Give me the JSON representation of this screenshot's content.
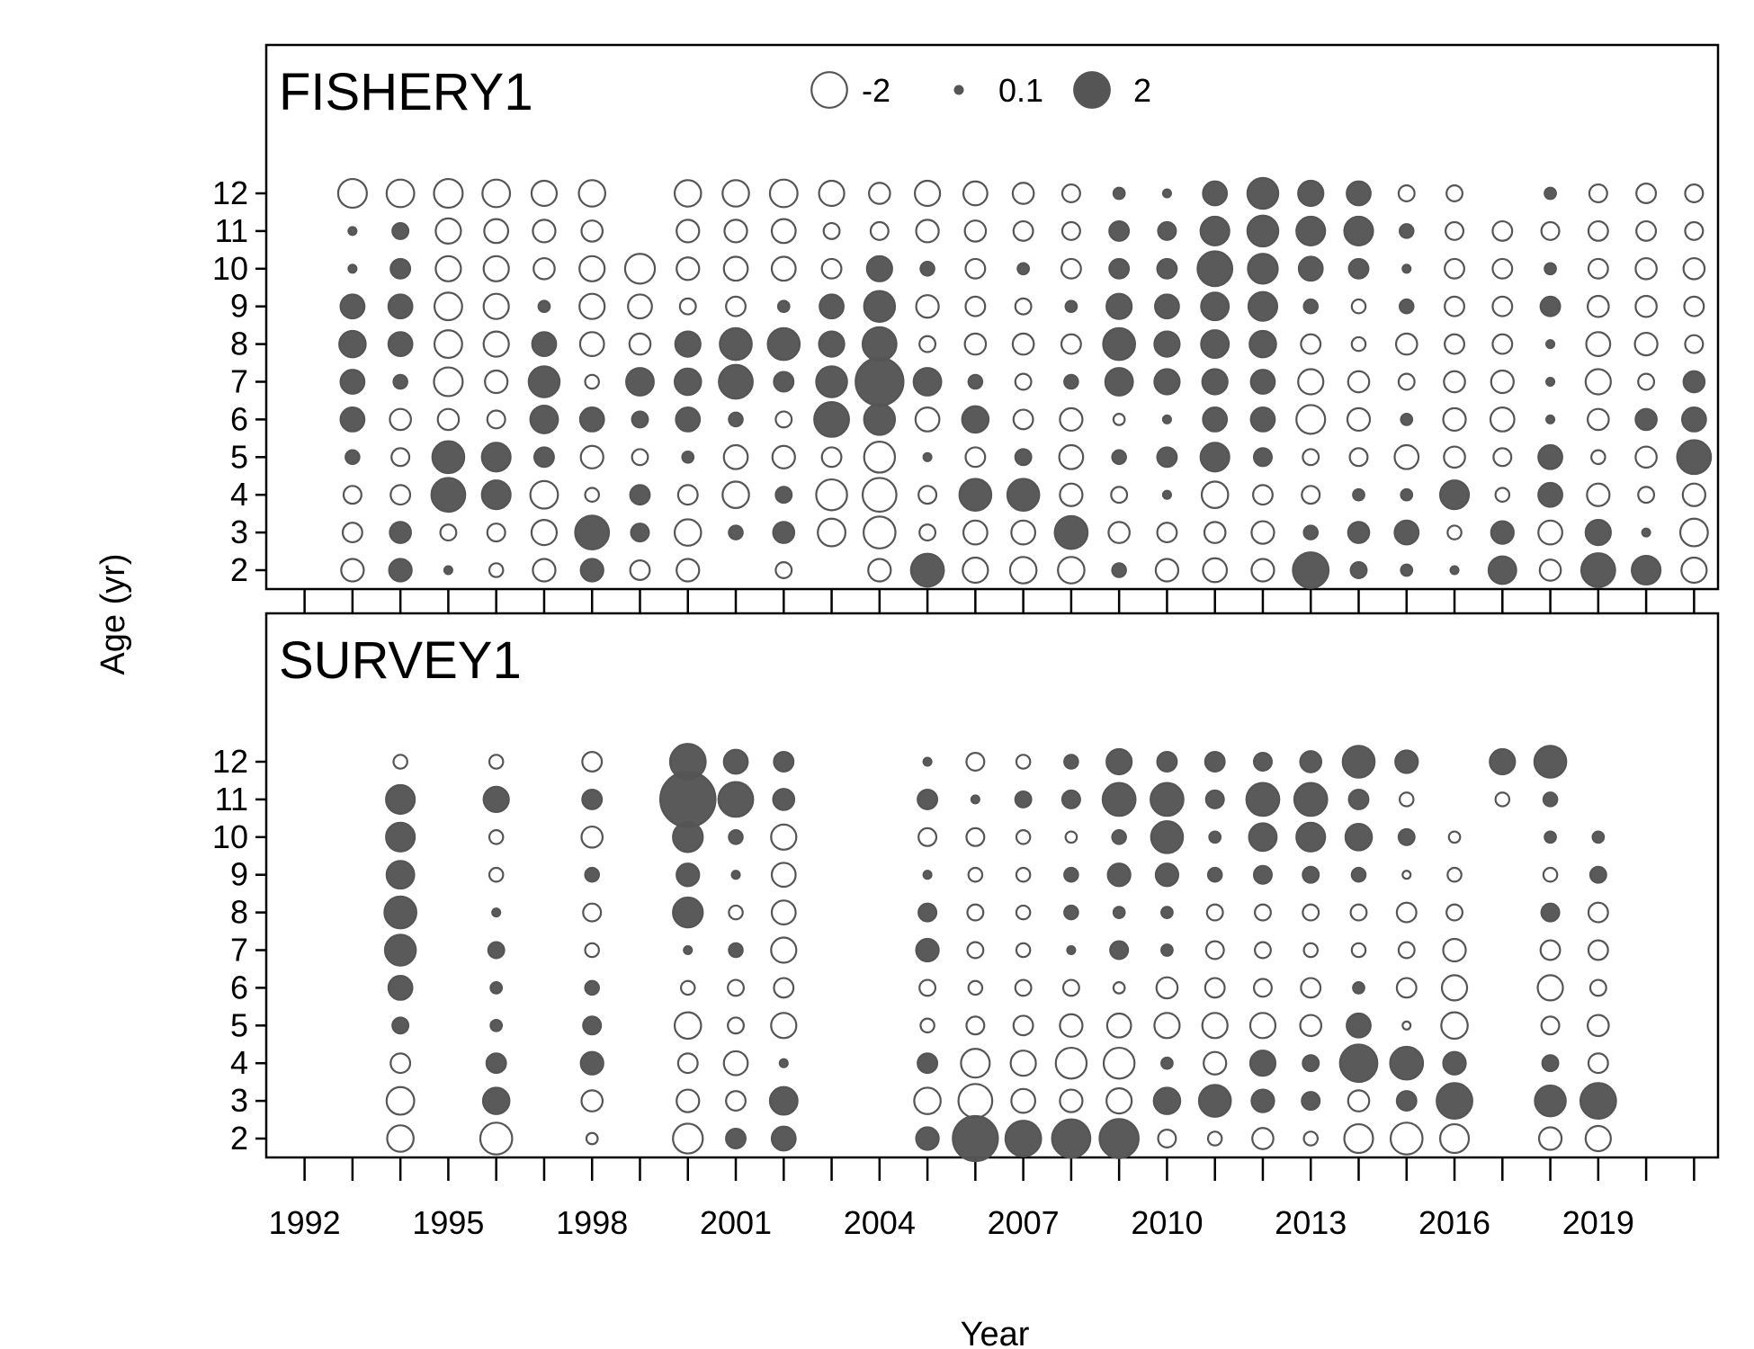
{
  "chart_data": {
    "type": "bubble",
    "xlabel": "Year",
    "ylabel": "Age (yr)",
    "x_ticks": [
      1992,
      1995,
      1998,
      2001,
      2004,
      2007,
      2010,
      2013,
      2016,
      2019
    ],
    "y_ticks": [
      2,
      3,
      4,
      5,
      6,
      7,
      8,
      9,
      10,
      11,
      12
    ],
    "xlim": [
      1991.2,
      2021.5
    ],
    "legend": {
      "placement": "top-center",
      "entries": [
        {
          "label": "-2",
          "value": -2
        },
        {
          "label": "0.1",
          "value": 0.1
        },
        {
          "label": "2",
          "value": 2
        }
      ]
    },
    "colors": {
      "positive": "#555555",
      "negative": "#ffffff",
      "stroke": "#555555"
    },
    "panels": [
      {
        "title": "FISHERY1",
        "ages": [
          12,
          11,
          10,
          9,
          8,
          7,
          6,
          5,
          4,
          3,
          2
        ],
        "years": [
          1993,
          1994,
          1995,
          1996,
          1997,
          1998,
          1999,
          2000,
          2001,
          2002,
          2003,
          2004,
          2005,
          2006,
          2007,
          2008,
          2009,
          2010,
          2011,
          2012,
          2013,
          2014,
          2015,
          2016,
          2017,
          2018,
          2019,
          2020,
          2021
        ],
        "residuals": [
          [
            -1.3,
            -1.2,
            -1.3,
            -1.2,
            -1.0,
            -1.1,
            null,
            -1.1,
            -1.1,
            -1.2,
            -1.0,
            -0.7,
            -1.0,
            -0.9,
            -0.7,
            -0.5,
            0.2,
            0.1,
            0.9,
            1.5,
            1.0,
            0.9,
            -0.4,
            -0.4,
            null,
            0.2,
            -0.5,
            -0.6,
            -0.5
          ],
          [
            0.1,
            0.4,
            -1.0,
            -0.9,
            -0.8,
            -0.7,
            null,
            -0.8,
            -0.8,
            -0.9,
            -0.4,
            -0.5,
            -0.8,
            -0.7,
            -0.6,
            -0.5,
            0.6,
            0.5,
            1.3,
            1.5,
            1.3,
            1.3,
            0.3,
            -0.5,
            -0.6,
            -0.5,
            -0.6,
            -0.6,
            -0.5
          ],
          [
            0.1,
            0.6,
            -1.0,
            -1.0,
            -0.7,
            -1.0,
            -1.4,
            -0.8,
            -0.9,
            -0.9,
            -0.6,
            1.0,
            0.3,
            -0.6,
            0.2,
            -0.6,
            0.6,
            0.6,
            1.9,
            1.4,
            0.9,
            0.6,
            0.1,
            -0.6,
            -0.6,
            0.2,
            -0.6,
            -0.7,
            -0.7
          ],
          [
            0.9,
            0.9,
            -1.2,
            -1.0,
            0.2,
            -1.0,
            -0.9,
            -0.4,
            -0.6,
            0.2,
            0.9,
            1.5,
            -0.8,
            -0.6,
            -0.4,
            0.2,
            1.0,
            0.9,
            1.2,
            1.3,
            0.3,
            -0.3,
            0.3,
            -0.6,
            -0.6,
            0.6,
            -0.7,
            -0.7,
            -0.6
          ],
          [
            1.1,
            0.9,
            -1.2,
            -1.0,
            0.9,
            -0.9,
            -0.7,
            1.0,
            1.6,
            1.6,
            1.0,
            1.8,
            -0.4,
            -0.7,
            -0.7,
            -0.6,
            1.6,
            1.0,
            1.2,
            1.1,
            -0.6,
            -0.3,
            -0.7,
            -0.6,
            -0.6,
            0.1,
            -0.9,
            -0.8,
            -0.5
          ],
          [
            0.9,
            0.3,
            -1.3,
            -0.8,
            1.5,
            -0.3,
            1.2,
            1.1,
            1.8,
            0.6,
            1.5,
            3.6,
            1.2,
            0.3,
            -0.4,
            0.3,
            1.2,
            1.0,
            1.0,
            0.9,
            -1.0,
            -0.7,
            -0.4,
            -0.7,
            -0.8,
            0.1,
            -1.0,
            -0.4,
            0.7
          ],
          [
            0.9,
            -0.7,
            -0.7,
            -0.5,
            1.2,
            0.9,
            0.4,
            0.9,
            0.3,
            -0.4,
            1.9,
            1.5,
            -0.9,
            1.1,
            -0.6,
            -0.8,
            -0.2,
            0.1,
            0.9,
            0.9,
            -1.3,
            -0.8,
            0.2,
            -0.8,
            -0.9,
            0.1,
            -0.7,
            0.7,
            0.9
          ],
          [
            0.3,
            -0.5,
            1.6,
            1.3,
            0.6,
            -0.8,
            -0.4,
            0.2,
            -0.9,
            -0.8,
            -0.6,
            -1.5,
            0.1,
            -0.6,
            0.4,
            -0.9,
            0.3,
            0.6,
            1.3,
            0.5,
            -0.4,
            -0.5,
            -0.9,
            -0.7,
            -0.5,
            0.9,
            -0.3,
            -0.7,
            1.8
          ],
          [
            -0.5,
            -0.6,
            1.8,
            1.3,
            -1.2,
            -0.3,
            0.6,
            -0.6,
            -1.1,
            0.4,
            -1.5,
            -1.8,
            -0.5,
            1.6,
            1.6,
            -0.8,
            -0.4,
            0.1,
            -1.1,
            -0.6,
            -0.5,
            0.2,
            0.2,
            1.3,
            -0.3,
            0.9,
            -0.8,
            -0.4,
            -0.8
          ],
          [
            -0.6,
            0.7,
            -0.4,
            -0.5,
            -1.0,
            1.8,
            0.5,
            -1.1,
            0.3,
            0.7,
            -1.2,
            -1.6,
            -0.4,
            -0.9,
            -0.9,
            1.7,
            -0.7,
            -0.6,
            -0.7,
            -0.8,
            0.3,
            0.7,
            0.9,
            -0.3,
            0.8,
            -0.9,
            1.0,
            0.1,
            -1.2
          ],
          [
            -0.8,
            0.8,
            0.1,
            -0.3,
            -0.8,
            0.8,
            -0.6,
            -0.8,
            null,
            -0.4,
            null,
            -0.8,
            1.7,
            -1.0,
            -1.1,
            -1.1,
            0.3,
            -0.8,
            -0.9,
            -0.8,
            2.0,
            0.4,
            0.2,
            0.1,
            1.2,
            -0.7,
            1.8,
            1.3,
            -1.0
          ]
        ]
      },
      {
        "title": "SURVEY1",
        "ages": [
          12,
          11,
          10,
          9,
          8,
          7,
          6,
          5,
          4,
          3,
          2
        ],
        "years": [
          1993,
          1994,
          1995,
          1996,
          1997,
          1998,
          1999,
          2000,
          2001,
          2002,
          2003,
          2004,
          2005,
          2006,
          2007,
          2008,
          2009,
          2010,
          2011,
          2012,
          2013,
          2014,
          2015,
          2016,
          2017,
          2018,
          2019,
          2020,
          2021
        ],
        "residuals": [
          [
            null,
            -0.3,
            null,
            -0.3,
            null,
            -0.6,
            null,
            2.0,
            0.9,
            0.6,
            null,
            null,
            0.1,
            -0.5,
            -0.3,
            0.3,
            1.0,
            0.6,
            0.6,
            0.5,
            0.7,
            1.6,
            0.8,
            null,
            1.0,
            1.6,
            null,
            null,
            null
          ],
          [
            null,
            1.3,
            null,
            1.0,
            null,
            0.6,
            null,
            4.8,
            1.9,
            0.7,
            null,
            null,
            0.6,
            0.1,
            0.4,
            0.5,
            1.7,
            1.7,
            0.5,
            1.7,
            1.7,
            0.6,
            -0.3,
            null,
            -0.3,
            0.3,
            null,
            null,
            null
          ],
          [
            null,
            1.3,
            null,
            -0.3,
            null,
            -0.7,
            null,
            1.4,
            0.3,
            -1.0,
            null,
            null,
            -0.5,
            -0.5,
            -0.3,
            -0.2,
            0.3,
            1.6,
            0.2,
            1.2,
            1.3,
            1.1,
            0.4,
            -0.2,
            null,
            0.2,
            0.2,
            null,
            null
          ],
          [
            null,
            1.2,
            null,
            -0.3,
            null,
            0.3,
            null,
            0.8,
            0.1,
            -0.9,
            null,
            null,
            0.1,
            -0.3,
            -0.3,
            0.3,
            0.8,
            0.8,
            0.3,
            0.5,
            0.4,
            0.3,
            -0.1,
            -0.3,
            null,
            -0.3,
            0.4,
            null,
            null
          ],
          [
            null,
            1.6,
            null,
            0.1,
            null,
            -0.5,
            null,
            1.4,
            -0.3,
            -0.9,
            null,
            null,
            0.5,
            -0.4,
            -0.3,
            0.3,
            0.2,
            0.2,
            -0.4,
            -0.4,
            -0.4,
            -0.4,
            -0.6,
            -0.4,
            null,
            0.5,
            -0.6,
            null,
            null
          ],
          [
            null,
            1.5,
            null,
            0.4,
            null,
            -0.3,
            null,
            0.1,
            0.3,
            -1.0,
            null,
            null,
            0.8,
            -0.4,
            -0.3,
            0.1,
            0.5,
            0.2,
            -0.5,
            -0.4,
            -0.3,
            -0.3,
            -0.4,
            -0.8,
            null,
            -0.6,
            -0.6,
            null,
            null
          ],
          [
            null,
            0.9,
            null,
            0.2,
            null,
            0.3,
            null,
            -0.3,
            -0.4,
            -0.6,
            null,
            null,
            -0.4,
            -0.3,
            -0.4,
            -0.4,
            -0.2,
            -0.7,
            -0.6,
            -0.5,
            -0.6,
            0.2,
            -0.6,
            -1.0,
            null,
            -1.0,
            -0.4,
            null,
            null
          ],
          [
            null,
            0.4,
            null,
            0.2,
            null,
            0.5,
            null,
            -1.1,
            -0.4,
            -1.0,
            null,
            null,
            -0.3,
            -0.5,
            -0.6,
            -0.8,
            -0.9,
            -1.0,
            -1.0,
            -1.0,
            -0.7,
            0.9,
            -0.1,
            -1.1,
            null,
            -0.5,
            -0.7,
            null,
            null
          ],
          [
            null,
            -0.6,
            null,
            0.6,
            null,
            0.8,
            null,
            -0.6,
            -0.9,
            0.1,
            null,
            null,
            0.6,
            -1.3,
            -1.0,
            -1.5,
            -1.5,
            0.2,
            -0.8,
            1.0,
            0.4,
            2.2,
            1.7,
            0.8,
            null,
            0.4,
            -0.6,
            null,
            null
          ],
          [
            null,
            -1.2,
            null,
            1.1,
            null,
            -0.7,
            null,
            -0.8,
            -0.6,
            1.2,
            null,
            null,
            -1.1,
            -1.8,
            -0.9,
            -0.8,
            -1.0,
            1.1,
            1.6,
            0.8,
            0.5,
            -0.7,
            0.6,
            2.0,
            null,
            1.5,
            2.0,
            null,
            null
          ],
          [
            null,
            -1.1,
            null,
            -1.6,
            null,
            -0.2,
            null,
            -1.4,
            0.6,
            0.9,
            null,
            null,
            0.8,
            3.2,
            2.0,
            2.3,
            2.4,
            -0.5,
            -0.3,
            -0.7,
            -0.3,
            -1.3,
            -1.6,
            -1.3,
            null,
            -0.8,
            -1.0,
            null,
            null
          ]
        ]
      }
    ]
  }
}
